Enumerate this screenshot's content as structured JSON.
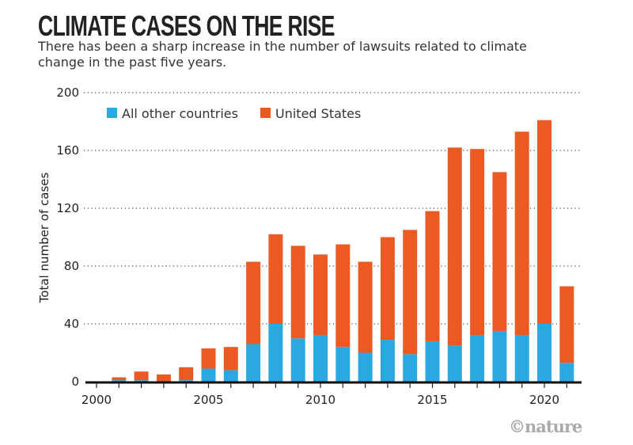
{
  "title": "CLIMATE CASES ON THE RISE",
  "subtitle": "There has been a sharp increase in the number of lawsuits related to climate change in the past five years.",
  "logo": "©nature",
  "chart_data": {
    "type": "bar",
    "stacked": true,
    "categories": [
      2001,
      2002,
      2003,
      2004,
      2005,
      2006,
      2007,
      2008,
      2009,
      2010,
      2011,
      2012,
      2013,
      2014,
      2015,
      2016,
      2017,
      2018,
      2019,
      2020,
      2021
    ],
    "series": [
      {
        "name": "All other countries",
        "color": "#29a9e0",
        "values": [
          1,
          1,
          0,
          1,
          9,
          8,
          26,
          40,
          30,
          32,
          24,
          20,
          29,
          19,
          28,
          25,
          32,
          35,
          32,
          40,
          13
        ]
      },
      {
        "name": "United States",
        "color": "#ec5a24",
        "values": [
          2,
          6,
          5,
          9,
          14,
          16,
          57,
          62,
          64,
          56,
          71,
          63,
          71,
          86,
          90,
          137,
          129,
          110,
          141,
          141,
          53
        ]
      }
    ],
    "xlabel": "",
    "ylabel": "Total number of cases",
    "xlim": [
      2000,
      2021
    ],
    "ylim": [
      0,
      200
    ],
    "yticks": [
      0,
      40,
      80,
      120,
      160,
      200
    ],
    "xticks": [
      2000,
      2005,
      2010,
      2015,
      2020
    ],
    "grid": "horizontal-dotted",
    "legend": "top-left"
  }
}
